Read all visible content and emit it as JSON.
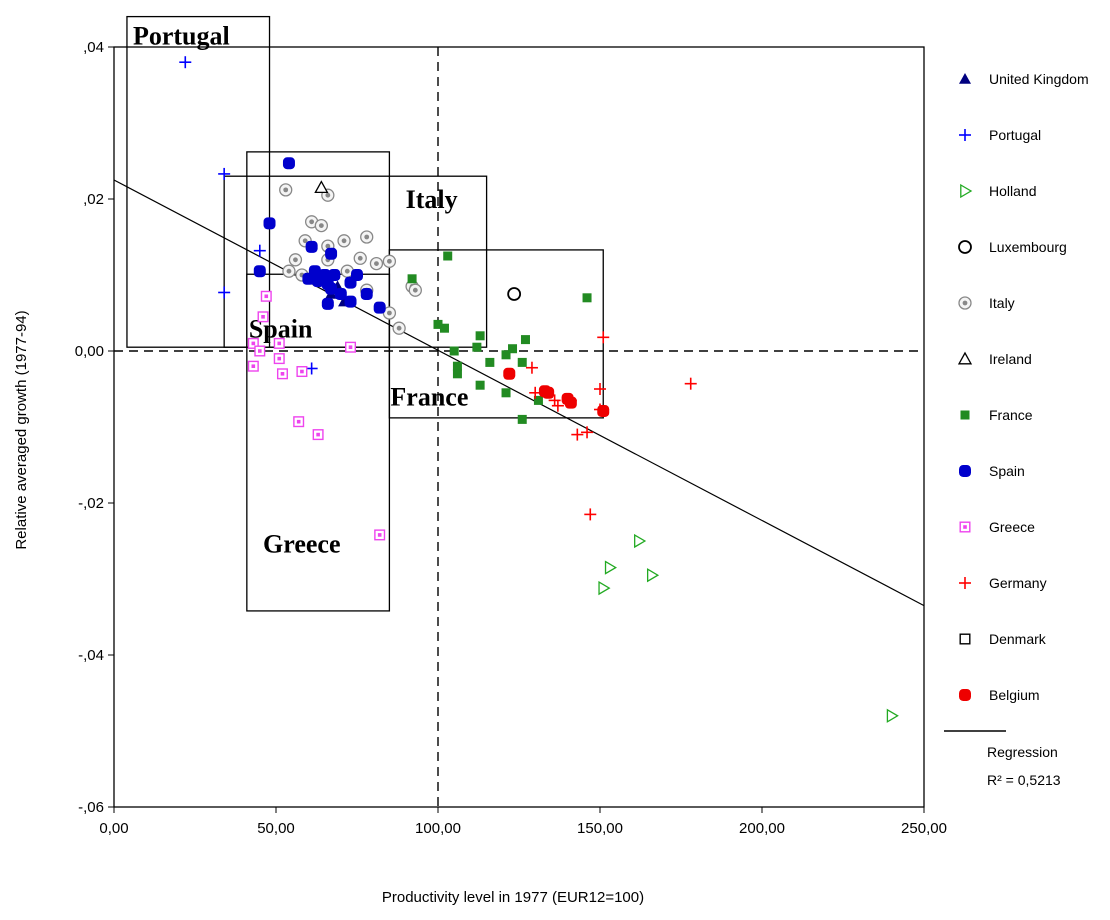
{
  "chart_data": {
    "type": "scatter",
    "xlabel": "Productivity level in 1977 (EUR12=100)",
    "ylabel": "Relative averaged growth (1977-94)",
    "xlim": [
      0,
      250
    ],
    "ylim": [
      -0.06,
      0.04
    ],
    "x_ticks": [
      "0,00",
      "50,00",
      "100,00",
      "150,00",
      "200,00",
      "250,00"
    ],
    "y_ticks": [
      ",04",
      ",02",
      "0,00",
      "-,02",
      "-,04",
      "-,06"
    ],
    "reference_lines": {
      "x": 100,
      "y": 0
    },
    "legend_position": "right",
    "series": [
      {
        "name": "United Kingdom",
        "color": "#000080",
        "marker": "triangle-filled",
        "points": [
          [
            67,
            0.0075
          ],
          [
            69,
            0.0085
          ],
          [
            71,
            0.0065
          ],
          [
            66,
            0.009
          ]
        ]
      },
      {
        "name": "Portugal",
        "color": "#0000ff",
        "marker": "plus",
        "points": [
          [
            22,
            0.038
          ],
          [
            34,
            0.0233
          ],
          [
            45,
            0.0132
          ],
          [
            34,
            0.0077
          ],
          [
            61,
            -0.0023
          ]
        ]
      },
      {
        "name": "Holland",
        "color": "#22aa22",
        "marker": "triangle-right-open",
        "points": [
          [
            162,
            -0.025
          ],
          [
            153,
            -0.0285
          ],
          [
            166,
            -0.0295
          ],
          [
            151,
            -0.0312
          ],
          [
            240,
            -0.048
          ]
        ]
      },
      {
        "name": "Luxembourg",
        "color": "#000000",
        "marker": "circle-open",
        "points": [
          [
            123.5,
            0.0075
          ]
        ]
      },
      {
        "name": "Italy",
        "color": "#888888",
        "marker": "circle-dot",
        "points": [
          [
            53,
            0.0212
          ],
          [
            66,
            0.0205
          ],
          [
            61,
            0.017
          ],
          [
            64,
            0.0165
          ],
          [
            59,
            0.0145
          ],
          [
            66,
            0.0138
          ],
          [
            71,
            0.0145
          ],
          [
            78,
            0.015
          ],
          [
            56,
            0.012
          ],
          [
            66,
            0.012
          ],
          [
            58,
            0.01
          ],
          [
            62,
            0.0095
          ],
          [
            72,
            0.0105
          ],
          [
            76,
            0.0122
          ],
          [
            81,
            0.0115
          ],
          [
            85,
            0.0118
          ],
          [
            92,
            0.0085
          ],
          [
            93,
            0.008
          ],
          [
            78,
            0.008
          ],
          [
            85,
            0.005
          ],
          [
            88,
            0.003
          ],
          [
            54,
            0.0105
          ]
        ]
      },
      {
        "name": "Ireland",
        "color": "#000000",
        "marker": "triangle-open",
        "points": [
          [
            64,
            0.0215
          ]
        ]
      },
      {
        "name": "France",
        "color": "#228b22",
        "marker": "square-filled",
        "points": [
          [
            103,
            0.0125
          ],
          [
            92,
            0.0095
          ],
          [
            100,
            0.0035
          ],
          [
            102,
            0.003
          ],
          [
            105,
            0
          ],
          [
            106,
            -0.002
          ],
          [
            106,
            -0.003
          ],
          [
            113,
            0.002
          ],
          [
            112,
            0.0005
          ],
          [
            116,
            -0.0015
          ],
          [
            121,
            -0.0005
          ],
          [
            123,
            0.0003
          ],
          [
            127,
            0.0015
          ],
          [
            126,
            -0.0015
          ],
          [
            121,
            -0.0055
          ],
          [
            113,
            -0.0045
          ],
          [
            126,
            -0.009
          ],
          [
            131,
            -0.0065
          ],
          [
            146,
            0.007
          ]
        ]
      },
      {
        "name": "Spain",
        "color": "#0000cc",
        "marker": "rounded-square",
        "points": [
          [
            54,
            0.0247
          ],
          [
            48,
            0.0168
          ],
          [
            61,
            0.0137
          ],
          [
            67,
            0.0128
          ],
          [
            45,
            0.0105
          ],
          [
            62,
            0.0105
          ],
          [
            65,
            0.01
          ],
          [
            68,
            0.01
          ],
          [
            75,
            0.01
          ],
          [
            60,
            0.0095
          ],
          [
            63,
            0.0092
          ],
          [
            73,
            0.009
          ],
          [
            66,
            0.0088
          ],
          [
            67,
            0.0082
          ],
          [
            78,
            0.0075
          ],
          [
            70,
            0.0075
          ],
          [
            73,
            0.0065
          ],
          [
            66,
            0.0062
          ],
          [
            82,
            0.0057
          ]
        ]
      },
      {
        "name": "Greece",
        "color": "#ee44ee",
        "marker": "square-dot",
        "points": [
          [
            47,
            0.0072
          ],
          [
            46,
            0.0045
          ],
          [
            43,
            0.001
          ],
          [
            45,
            0
          ],
          [
            51,
            0.001
          ],
          [
            43,
            -0.002
          ],
          [
            52,
            -0.003
          ],
          [
            58,
            -0.0027
          ],
          [
            51,
            -0.001
          ],
          [
            73,
            0.0005
          ],
          [
            57,
            -0.0093
          ],
          [
            63,
            -0.011
          ],
          [
            82,
            -0.0242
          ]
        ]
      },
      {
        "name": "Germany",
        "color": "#ff0000",
        "marker": "plus",
        "points": [
          [
            151,
            0.0018
          ],
          [
            129,
            -0.0022
          ],
          [
            136,
            -0.0065
          ],
          [
            141,
            -0.0065
          ],
          [
            150,
            -0.005
          ],
          [
            146,
            -0.0107
          ],
          [
            143,
            -0.011
          ],
          [
            150,
            -0.0077
          ],
          [
            178,
            -0.0043
          ],
          [
            147,
            -0.0215
          ],
          [
            137,
            -0.0072
          ],
          [
            130,
            -0.0055
          ]
        ]
      },
      {
        "name": "Denmark",
        "color": "#000000",
        "marker": "square-open",
        "points": []
      },
      {
        "name": "Belgium",
        "color": "#ee0000",
        "marker": "rounded-square",
        "points": [
          [
            122,
            -0.003
          ],
          [
            133,
            -0.0053
          ],
          [
            134,
            -0.0055
          ],
          [
            140,
            -0.0063
          ],
          [
            141,
            -0.0068
          ],
          [
            151,
            -0.0079
          ]
        ]
      }
    ],
    "regression": {
      "name": "Regression",
      "r2_label": "R² = 0,5213",
      "intercept": 0.0225,
      "slope": -0.000224
    },
    "region_boxes": [
      {
        "label": "Portugal",
        "x0": 4,
        "x1": 48,
        "y0": 0.0005,
        "y1": 0.044
      },
      {
        "label": "Spain",
        "x0": 34,
        "x1": 115,
        "y0": 0.0005,
        "y1": 0.023
      },
      {
        "label": "Italy",
        "x0": 41,
        "x1": 85,
        "y0": 0.0005,
        "y1": 0.0262
      },
      {
        "label": "France",
        "x0": 85,
        "x1": 151,
        "y0": -0.0088,
        "y1": 0.0133
      },
      {
        "label": "Greece",
        "x0": 41,
        "x1": 85,
        "y0": -0.0342,
        "y1": 0.0101
      }
    ]
  }
}
